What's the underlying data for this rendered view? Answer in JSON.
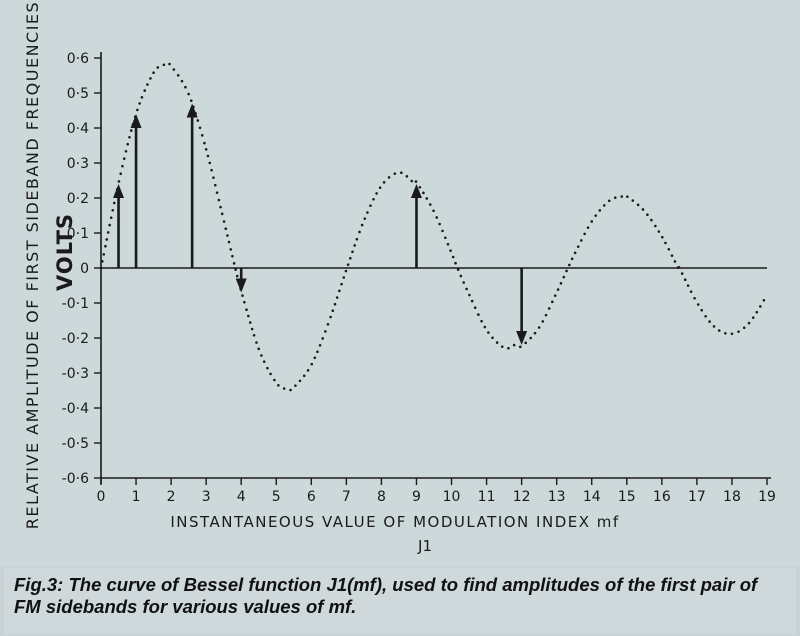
{
  "chart_data": {
    "type": "line",
    "title": "",
    "ylabel": "RELATIVE AMPLITUDE OF FIRST SIDEBAND FREQUENCIES",
    "ylabel_unit": "VOLTS",
    "xlabel": "INSTANTANEOUS VALUE OF MODULATION INDEX mf",
    "xlabel_sub": "J1",
    "xlim": [
      0,
      19
    ],
    "ylim": [
      -0.6,
      0.6
    ],
    "x_ticks": [
      "0",
      "1",
      "2",
      "3",
      "4",
      "5",
      "6",
      "7",
      "8",
      "9",
      "10",
      "11",
      "12",
      "13",
      "14",
      "15",
      "16",
      "17",
      "18",
      "19"
    ],
    "y_ticks": [
      {
        "value": 0.6,
        "label": "0·6"
      },
      {
        "value": 0.5,
        "label": "0·5"
      },
      {
        "value": 0.4,
        "label": "0·4"
      },
      {
        "value": 0.3,
        "label": "0·3"
      },
      {
        "value": 0.2,
        "label": "0·2"
      },
      {
        "value": 0.1,
        "label": "0·1"
      },
      {
        "value": 0,
        "label": "0"
      },
      {
        "value": -0.1,
        "label": "-0·1"
      },
      {
        "value": -0.2,
        "label": "-0·2"
      },
      {
        "value": -0.3,
        "label": "-0·3"
      },
      {
        "value": -0.4,
        "label": "-0·4"
      },
      {
        "value": -0.5,
        "label": "-0·5"
      },
      {
        "value": -0.6,
        "label": "-0·6"
      }
    ],
    "grid": false,
    "curve": {
      "style": "dotted",
      "x": [
        0,
        0.5,
        1,
        1.5,
        1.84,
        2,
        2.5,
        3,
        3.5,
        3.83,
        4,
        4.5,
        5,
        5.33,
        5.5,
        6,
        6.5,
        7,
        7.5,
        8,
        8.5,
        8.9,
        9,
        9.5,
        10,
        10.17,
        10.5,
        11,
        11.5,
        11.8,
        12,
        12.5,
        13,
        13.32,
        13.5,
        14,
        14.5,
        14.9,
        15,
        15.5,
        16,
        16.47,
        16.5,
        17,
        17.5,
        18,
        18.5,
        19
      ],
      "y": [
        0,
        0.242,
        0.44,
        0.558,
        0.582,
        0.577,
        0.497,
        0.339,
        0.137,
        0,
        -0.066,
        -0.231,
        -0.328,
        -0.346,
        -0.341,
        -0.277,
        -0.154,
        -0.005,
        0.135,
        0.235,
        0.273,
        0.246,
        0.245,
        0.161,
        0.043,
        0,
        -0.075,
        -0.177,
        -0.228,
        -0.22,
        -0.223,
        -0.17,
        -0.07,
        0,
        0.038,
        0.133,
        0.192,
        0.205,
        0.205,
        0.163,
        0.09,
        0,
        0.0,
        -0.098,
        -0.168,
        -0.188,
        -0.156,
        -0.077
      ]
    },
    "arrows": [
      {
        "x": 0.5,
        "y": 0.24
      },
      {
        "x": 1.0,
        "y": 0.44
      },
      {
        "x": 2.6,
        "y": 0.47
      },
      {
        "x": 4.0,
        "y": -0.07
      },
      {
        "x": 9.0,
        "y": 0.24
      },
      {
        "x": 12.0,
        "y": -0.22
      }
    ],
    "colors": {
      "ink": "#1a1a1a",
      "background": "#cdd8db"
    }
  },
  "caption": {
    "text": "Fig.3: The curve of Bessel function J1(mf), used to find amplitudes of the first pair of FM sidebands for various values of mf."
  }
}
